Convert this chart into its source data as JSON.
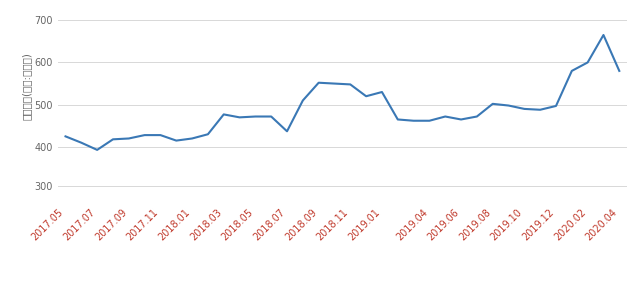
{
  "x_labels": [
    "2017.05",
    "2017.07",
    "2017.09",
    "2017.11",
    "2018.01",
    "2018.03",
    "2018.05",
    "2018.07",
    "2018.09",
    "2018.11",
    "2019.01",
    "2019.04",
    "2019.06",
    "2019.08",
    "2019.10",
    "2019.12",
    "2020.02",
    "2020.04"
  ],
  "data_points": [
    [
      "2017.05",
      425
    ],
    [
      "2017.06",
      410
    ],
    [
      "2017.07",
      393
    ],
    [
      "2017.08",
      418
    ],
    [
      "2017.09",
      420
    ],
    [
      "2017.10",
      428
    ],
    [
      "2017.11",
      428
    ],
    [
      "2017.12",
      415
    ],
    [
      "2018.01",
      420
    ],
    [
      "2018.02",
      430
    ],
    [
      "2018.03",
      477
    ],
    [
      "2018.04",
      470
    ],
    [
      "2018.05",
      472
    ],
    [
      "2018.06",
      472
    ],
    [
      "2018.07",
      437
    ],
    [
      "2018.08",
      510
    ],
    [
      "2018.09",
      552
    ],
    [
      "2018.10",
      550
    ],
    [
      "2018.11",
      548
    ],
    [
      "2018.12",
      520
    ],
    [
      "2019.01",
      530
    ],
    [
      "2019.02",
      465
    ],
    [
      "2019.03",
      462
    ],
    [
      "2019.04",
      462
    ],
    [
      "2019.05",
      472
    ],
    [
      "2019.06",
      465
    ],
    [
      "2019.07",
      472
    ],
    [
      "2019.08",
      502
    ],
    [
      "2019.09",
      498
    ],
    [
      "2019.10",
      490
    ],
    [
      "2019.11",
      488
    ],
    [
      "2019.12",
      497
    ],
    [
      "2020.01",
      580
    ],
    [
      "2020.02",
      600
    ],
    [
      "2020.03",
      665
    ],
    [
      "2020.04",
      580
    ]
  ],
  "ylabel": "거래금액(단위:백만원)",
  "yticks_main": [
    400,
    500,
    600,
    700
  ],
  "ytick_extra": 300,
  "ylim_main": [
    370,
    720
  ],
  "ylim_extra": [
    285,
    320
  ],
  "line_color": "#3a78b5",
  "line_width": 1.5,
  "tick_color_x": "#c0392b",
  "tick_color_y": "#666666",
  "grid_color": "#d8d8d8",
  "bg_color": "#ffffff",
  "fontsize_tick": 7.0,
  "fontsize_ylabel": 7.5
}
